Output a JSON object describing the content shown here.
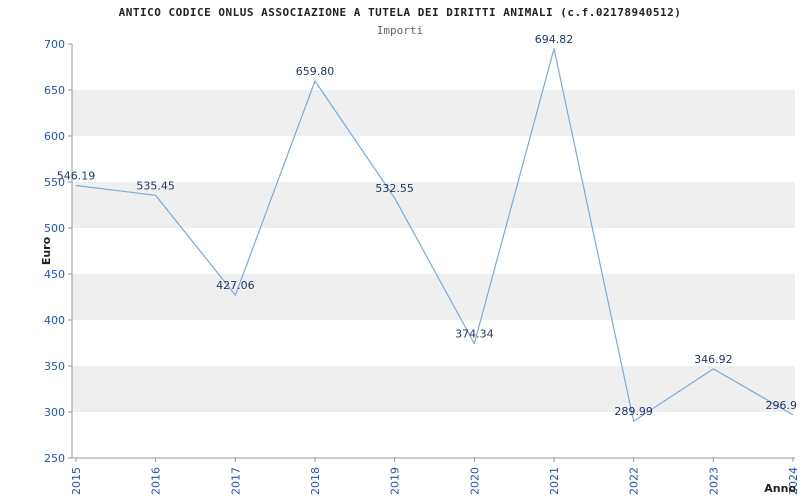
{
  "title": "ANTICO CODICE ONLUS ASSOCIAZIONE A TUTELA DEI DIRITTI ANIMALI (c.f.02178940512)",
  "subtitle": "Importi",
  "chart_data": {
    "type": "line",
    "x": [
      "2015",
      "2016",
      "2017",
      "2018",
      "2019",
      "2020",
      "2021",
      "2022",
      "2023",
      "2024"
    ],
    "values": [
      546.19,
      535.45,
      427.06,
      659.8,
      532.55,
      374.34,
      694.82,
      289.99,
      346.92,
      296.9
    ],
    "point_labels": [
      "546.19",
      "535.45",
      "427.06",
      "659.80",
      "532.55",
      "374.34",
      "694.82",
      "289.99",
      "346.92",
      "296.9"
    ],
    "series_name": "Importi",
    "xlabel": "Anno",
    "ylabel": "Euro",
    "ylim": [
      250,
      700
    ],
    "ytick_step": 50,
    "yticks": [
      "250",
      "300",
      "350",
      "400",
      "450",
      "500",
      "550",
      "600",
      "650",
      "700"
    ],
    "grid": "alternating-horizontal-bands",
    "legend": "none",
    "line_color": "#7aabdc",
    "point_label_color": "#1f3864",
    "tick_label_color": "#2255bb",
    "band_color": "#efefef",
    "axis_color": "#999999"
  }
}
